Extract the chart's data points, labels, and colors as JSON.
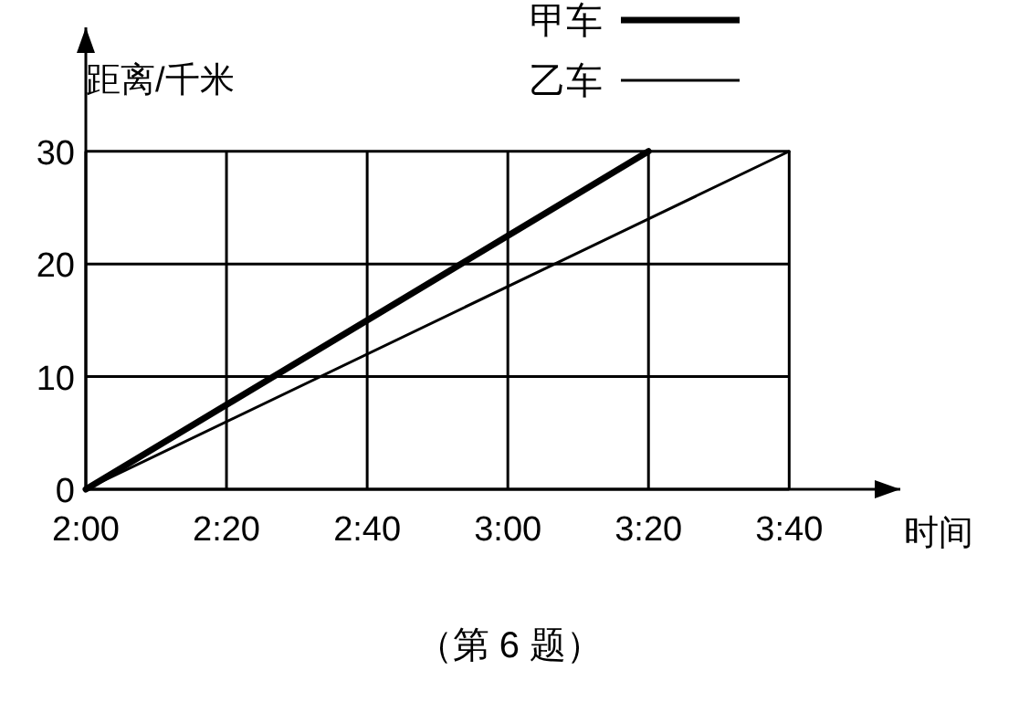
{
  "chart_data": {
    "type": "line",
    "xlabel": "时间",
    "ylabel": "距离/千米",
    "xlim": [
      2,
      3.93
    ],
    "ylim": [
      0,
      41
    ],
    "xticks": [
      {
        "value": 2,
        "label": "2:00"
      },
      {
        "value": 2.3333,
        "label": "2:20"
      },
      {
        "value": 2.6667,
        "label": "2:40"
      },
      {
        "value": 3,
        "label": "3:00"
      },
      {
        "value": 3.3333,
        "label": "3:20"
      },
      {
        "value": 3.6667,
        "label": "3:40"
      }
    ],
    "yticks": [
      0,
      10,
      20,
      30
    ],
    "grid": true,
    "legend": "top right",
    "line_style": "solid",
    "series": [
      {
        "name": "甲车",
        "color": "#000000",
        "x": [
          2,
          3.3333
        ],
        "values": [
          0,
          30
        ]
      },
      {
        "name": "乙车",
        "color": "#000000",
        "x": [
          2,
          3.6667
        ],
        "values": [
          0,
          30
        ]
      }
    ],
    "annotations": [
      "（第 6 题）"
    ]
  }
}
